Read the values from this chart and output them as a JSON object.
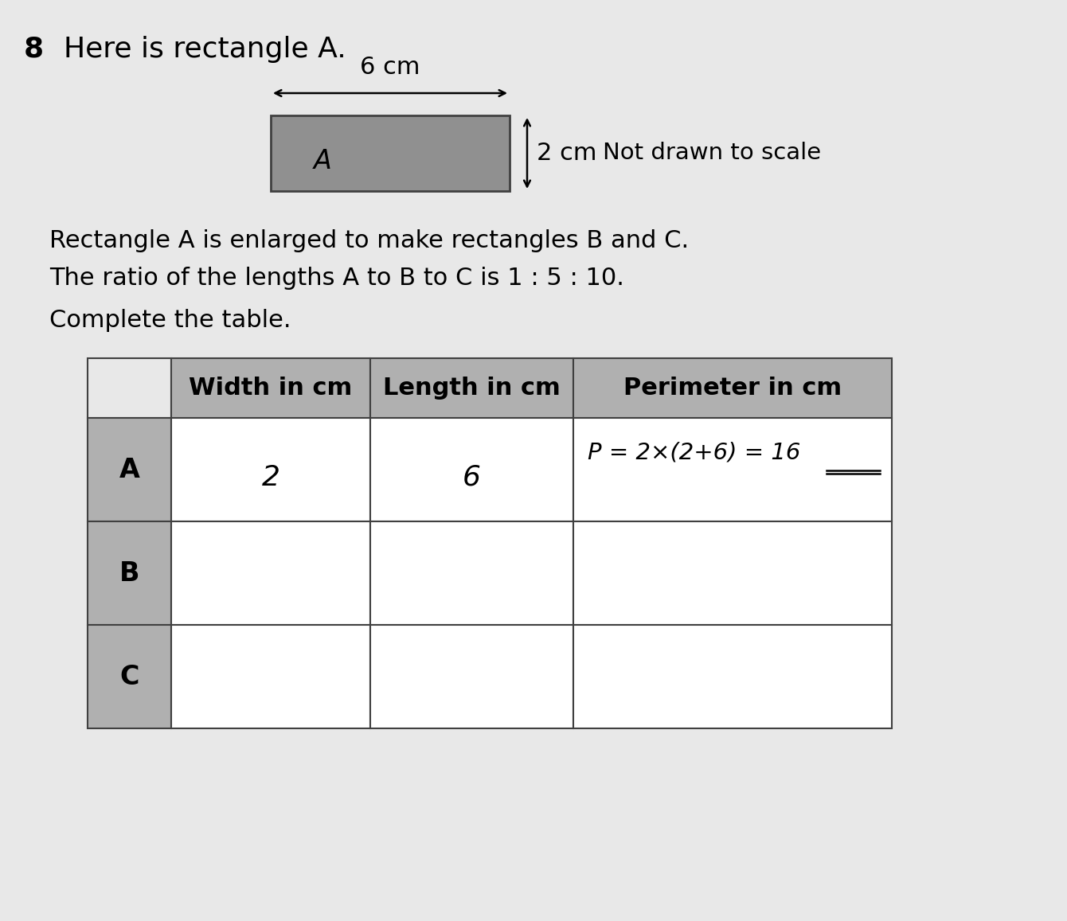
{
  "question_number": "8",
  "title_text": "Here is rectangle A.",
  "rect_label": "A",
  "rect_color": "#909090",
  "arrow_label_top": "6 cm",
  "arrow_label_right": "2 cm",
  "not_drawn_note": "Not drawn to scale",
  "para1": "Rectangle A is enlarged to make rectangles B and C.",
  "para2": "The ratio of the lengths A to B to C is 1 : 5 : 10.",
  "para3": "Complete the table.",
  "table_headers": [
    "Width in cm",
    "Length in cm",
    "Perimeter in cm"
  ],
  "table_rows": [
    {
      "label": "A",
      "width": "2",
      "length": "6",
      "perimeter": "P = 2×(2+6) = 16"
    },
    {
      "label": "B",
      "width": "",
      "length": "",
      "perimeter": ""
    },
    {
      "label": "C",
      "width": "",
      "length": "",
      "perimeter": ""
    }
  ],
  "header_bg": "#b0b0b0",
  "label_bg": "#b0b0b0",
  "row_bg": "#ffffff",
  "bg_color": "#c8c8c8",
  "page_bg": "#e8e8e8",
  "font_size_title": 26,
  "font_size_body": 22,
  "font_size_table_header": 22,
  "font_size_hand": 21
}
